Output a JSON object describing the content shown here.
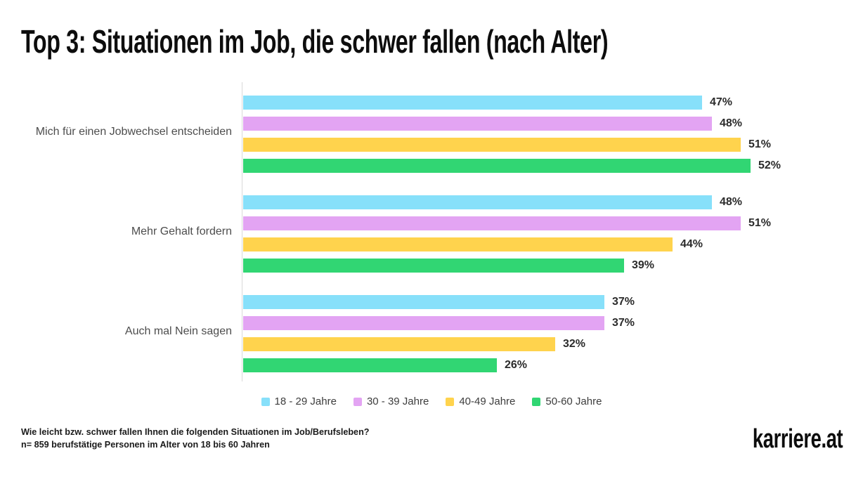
{
  "title": "Top 3: Situationen im Job, die schwer fallen (nach Alter)",
  "chart_data": {
    "type": "bar",
    "orientation": "horizontal",
    "title": "Top 3: Situationen im Job, die schwer fallen (nach Alter)",
    "categories": [
      "Mich für einen Jobwechsel entscheiden",
      "Mehr Gehalt fordern",
      "Auch mal Nein sagen"
    ],
    "series": [
      {
        "name": "18 - 29 Jahre",
        "color": "#87E0FA",
        "values": [
          47,
          48,
          37
        ]
      },
      {
        "name": "30 - 39 Jahre",
        "color": "#E3A4F3",
        "values": [
          48,
          51,
          37
        ]
      },
      {
        "name": "40-49 Jahre",
        "color": "#FFD34D",
        "values": [
          51,
          44,
          32
        ]
      },
      {
        "name": "50-60 Jahre",
        "color": "#31D673",
        "values": [
          52,
          39,
          26
        ]
      }
    ],
    "value_suffix": "%",
    "xlim": [
      0,
      60
    ],
    "grid": false,
    "legend_position": "bottom",
    "axis_line_color": "#d8d8d8"
  },
  "footer": {
    "line1": "Wie leicht bzw. schwer fallen Ihnen die folgenden Situationen im Job/Berufsleben?",
    "line2": "n= 859 berufstätige Personen im Alter von 18 bis 60 Jahren"
  },
  "logo_text": "karriere.at"
}
